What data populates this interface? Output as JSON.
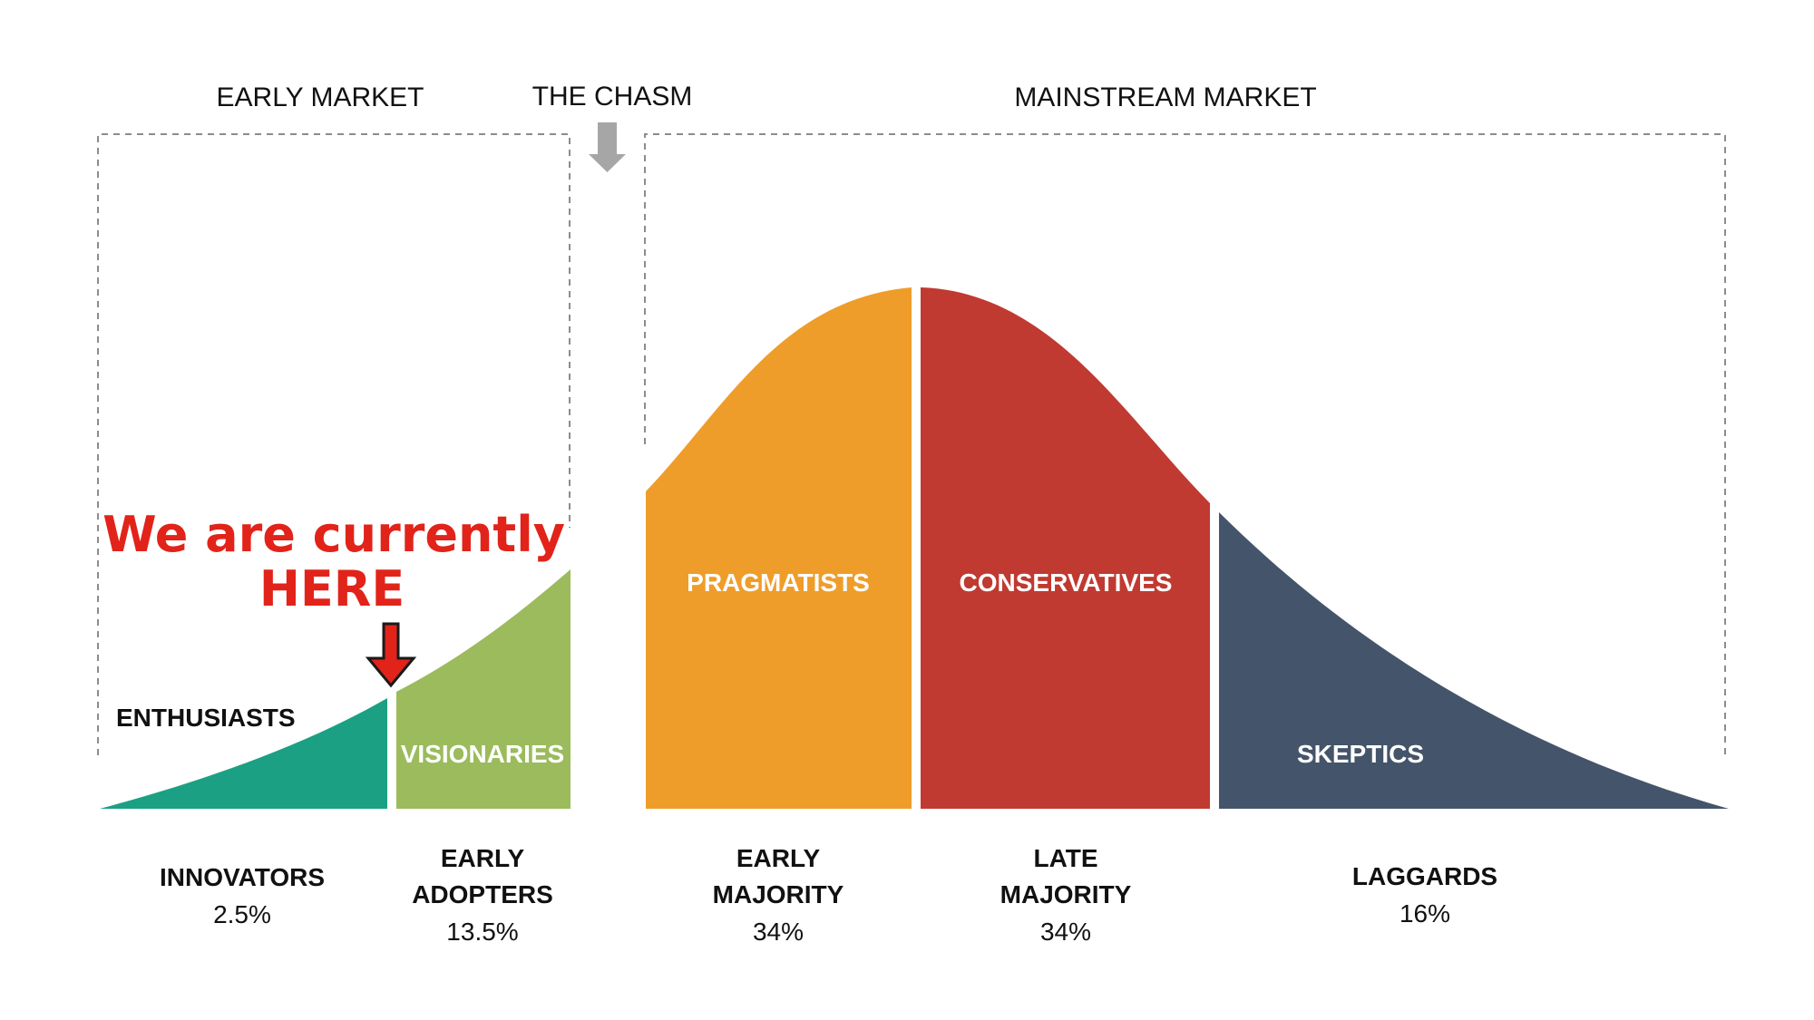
{
  "headers": {
    "early_market": "EARLY MARKET",
    "the_chasm": "THE CHASM",
    "mainstream_market": "MAINSTREAM MARKET"
  },
  "segments": {
    "enthusiasts": "ENTHUSIASTS",
    "visionaries": "VISIONARIES",
    "pragmatists": "PRAGMATISTS",
    "conservatives": "CONSERVATIVES",
    "skeptics": "SKEPTICS"
  },
  "categories": [
    {
      "lines": [
        "INNOVATORS"
      ],
      "percent": "2.5%"
    },
    {
      "lines": [
        "EARLY",
        "ADOPTERS"
      ],
      "percent": "13.5%"
    },
    {
      "lines": [
        "EARLY",
        "MAJORITY"
      ],
      "percent": "34%"
    },
    {
      "lines": [
        "LATE",
        "MAJORITY"
      ],
      "percent": "34%"
    },
    {
      "lines": [
        "LAGGARDS"
      ],
      "percent": "16%"
    }
  ],
  "callout": {
    "line1": "We are currently",
    "line2": "HERE"
  },
  "colors": {
    "innovators": "#1ba083",
    "early_adopters": "#9bbb5c",
    "early_majority": "#ef9d2a",
    "late_majority": "#c03a31",
    "laggards": "#44546a",
    "callout": "#e2231a",
    "chasm_arrow": "#a6a6a6",
    "bracket": "#8c8c8c"
  }
}
